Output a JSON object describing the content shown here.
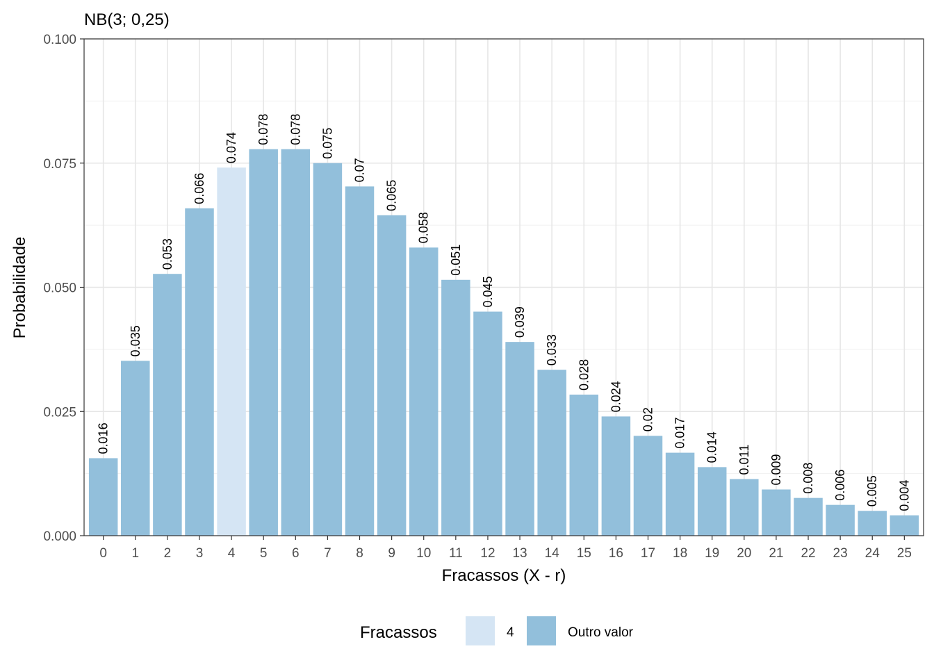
{
  "chart_data": {
    "type": "bar",
    "title": "NB(3; 0,25)",
    "xlabel": "Fracassos (X - r)",
    "ylabel": "Probabilidade",
    "categories": [
      "0",
      "1",
      "2",
      "3",
      "4",
      "5",
      "6",
      "7",
      "8",
      "9",
      "10",
      "11",
      "12",
      "13",
      "14",
      "15",
      "16",
      "17",
      "18",
      "19",
      "20",
      "21",
      "22",
      "23",
      "24",
      "25"
    ],
    "values": [
      0.0156,
      0.0352,
      0.0527,
      0.0659,
      0.0741,
      0.0778,
      0.0778,
      0.075,
      0.0703,
      0.0645,
      0.058,
      0.0515,
      0.0451,
      0.039,
      0.0334,
      0.0284,
      0.024,
      0.0201,
      0.0167,
      0.0138,
      0.0114,
      0.0093,
      0.0076,
      0.0062,
      0.005,
      0.0041
    ],
    "labels": [
      "0.016",
      "0.035",
      "0.053",
      "0.066",
      "0.074",
      "0.078",
      "0.078",
      "0.075",
      "0.07",
      "0.065",
      "0.058",
      "0.051",
      "0.045",
      "0.039",
      "0.033",
      "0.028",
      "0.024",
      "0.02",
      "0.017",
      "0.014",
      "0.011",
      "0.009",
      "0.008",
      "0.006",
      "0.005",
      "0.004"
    ],
    "highlight_category": "4",
    "ylim": [
      0,
      0.1
    ],
    "yticks": [
      "0.000",
      "0.025",
      "0.050",
      "0.075",
      "0.100"
    ],
    "grid": true,
    "legend": {
      "title": "Fracassos",
      "position": "bottom",
      "entries": [
        {
          "label": "4",
          "color": "#d5e5f4"
        },
        {
          "label": "Outro valor",
          "color": "#92bfdb"
        }
      ]
    },
    "colors": {
      "highlight": "#d5e5f4",
      "default": "#92bfdb"
    }
  }
}
